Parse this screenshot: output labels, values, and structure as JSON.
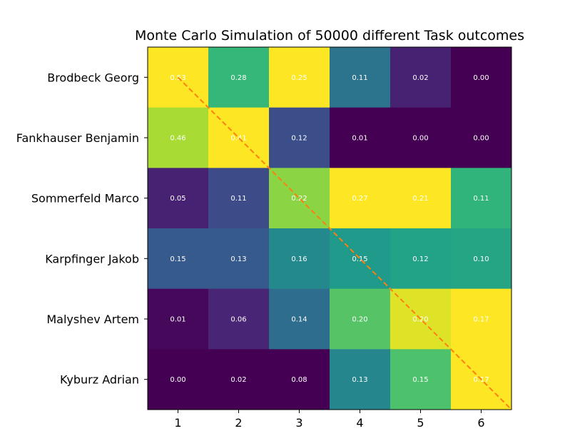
{
  "chart_data": {
    "type": "heatmap",
    "title": "Monte Carlo Simulation of 50000 different Task outcomes",
    "xlabel": "",
    "ylabel": "",
    "x_categories": [
      "1",
      "2",
      "3",
      "4",
      "5",
      "6"
    ],
    "y_categories": [
      "Brodbeck Georg",
      "Fankhauser Benjamin",
      "Sommerfeld Marco",
      "Karpfinger Jakob",
      "Malyshev Artem",
      "Kyburz Adrian"
    ],
    "values": [
      [
        0.53,
        0.28,
        0.25,
        0.11,
        0.02,
        0.0
      ],
      [
        0.46,
        0.41,
        0.12,
        0.01,
        0.0,
        0.0
      ],
      [
        0.05,
        0.11,
        0.22,
        0.27,
        0.21,
        0.11
      ],
      [
        0.15,
        0.13,
        0.16,
        0.15,
        0.12,
        0.1
      ],
      [
        0.01,
        0.06,
        0.14,
        0.2,
        0.2,
        0.17
      ],
      [
        0.0,
        0.02,
        0.08,
        0.13,
        0.15,
        0.17
      ]
    ],
    "colormap": "viridis",
    "color_normalization": "per-column",
    "cell_label_color": "#ffffff",
    "diagonal_line": {
      "style": "dashed",
      "color": "#ff7f0e"
    },
    "grid": false,
    "legend": "none"
  }
}
